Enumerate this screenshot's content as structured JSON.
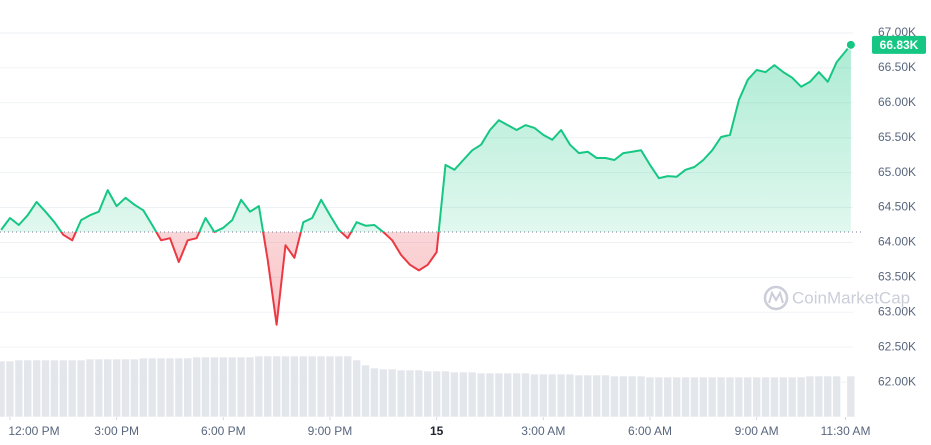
{
  "chart_data": {
    "type": "line",
    "watermark": "CoinMarketCap",
    "x": [
      -0.25,
      0,
      0.25,
      0.5,
      0.75,
      1,
      1.25,
      1.5,
      1.75,
      2,
      2.25,
      2.5,
      2.75,
      3,
      3.25,
      3.5,
      3.75,
      4,
      4.25,
      4.5,
      4.75,
      5,
      5.25,
      5.5,
      5.75,
      6,
      6.25,
      6.5,
      6.75,
      7,
      7.25,
      7.5,
      7.75,
      8,
      8.25,
      8.5,
      8.75,
      9,
      9.25,
      9.5,
      9.75,
      10,
      10.25,
      10.5,
      10.75,
      11,
      11.25,
      11.5,
      11.75,
      12,
      12.25,
      12.5,
      12.75,
      13,
      13.25,
      13.5,
      13.75,
      14,
      14.25,
      14.5,
      14.75,
      15,
      15.25,
      15.5,
      15.75,
      16,
      16.25,
      16.5,
      16.75,
      17,
      17.25,
      17.5,
      17.75,
      18,
      18.25,
      18.5,
      18.75,
      19,
      19.25,
      19.5,
      19.75,
      20,
      20.25,
      20.5,
      20.75,
      21,
      21.25,
      21.5,
      21.75,
      22,
      22.25,
      22.5,
      22.75,
      23,
      23.25,
      23.65
    ],
    "values": [
      64180,
      64350,
      64250,
      64390,
      64580,
      64440,
      64290,
      64110,
      64030,
      64320,
      64390,
      64440,
      64750,
      64520,
      64640,
      64540,
      64460,
      64250,
      64030,
      64060,
      63720,
      64030,
      64060,
      64350,
      64150,
      64210,
      64320,
      64610,
      64440,
      64520,
      63750,
      62820,
      63960,
      63780,
      64290,
      64350,
      64610,
      64390,
      64180,
      64060,
      64290,
      64240,
      64250,
      64150,
      64030,
      63820,
      63680,
      63600,
      63680,
      63860,
      65110,
      65040,
      65180,
      65320,
      65400,
      65610,
      65750,
      65680,
      65610,
      65680,
      65640,
      65540,
      65470,
      65610,
      65400,
      65280,
      65300,
      65210,
      65210,
      65180,
      65280,
      65300,
      65320,
      65110,
      64920,
      64950,
      64940,
      65040,
      65080,
      65180,
      65320,
      65510,
      65540,
      66040,
      66330,
      66470,
      66440,
      66540,
      66440,
      66360,
      66230,
      66300,
      66440,
      66300,
      66580,
      66830
    ],
    "volume": [
      56,
      56,
      57,
      57,
      57,
      57,
      57,
      57,
      57,
      57,
      58,
      58,
      58,
      58,
      58,
      58,
      59,
      59,
      59,
      59,
      59,
      59,
      60,
      60,
      60,
      60,
      60,
      60,
      60,
      61,
      61,
      61,
      61,
      61,
      61,
      61,
      61,
      61,
      61,
      61,
      57,
      52,
      49,
      48,
      48,
      47,
      47,
      47,
      46,
      46,
      46,
      45,
      45,
      45,
      44,
      44,
      44,
      44,
      44,
      44,
      43,
      43,
      43,
      43,
      43,
      42,
      42,
      42,
      42,
      41,
      41,
      41,
      41,
      40,
      40,
      40,
      40,
      40,
      40,
      40,
      40,
      40,
      40,
      40,
      40,
      40,
      40,
      40,
      40,
      40,
      40,
      41,
      41,
      41,
      41,
      41
    ],
    "baseline": 64150,
    "last_label": {
      "value": 66830,
      "label": "66.83K"
    },
    "color_up": "#16c784",
    "color_down": "#ea3943",
    "volume_color": "#e3e6eb",
    "grid": true,
    "xlim": [
      -0.28,
      23.71
    ],
    "ylim": [
      61500,
      67200
    ],
    "xticks": [
      {
        "value": 0,
        "label": "12:00 PM"
      },
      {
        "value": 3,
        "label": "3:00 PM"
      },
      {
        "value": 6,
        "label": "6:00 PM"
      },
      {
        "value": 9,
        "label": "9:00 PM"
      },
      {
        "value": 12,
        "label": "15"
      },
      {
        "value": 15,
        "label": "3:00 AM"
      },
      {
        "value": 18,
        "label": "6:00 AM"
      },
      {
        "value": 21,
        "label": "9:00 AM"
      },
      {
        "value": 23.5,
        "label": "11:30 AM"
      }
    ],
    "yticks": [
      {
        "value": 62000,
        "label": "62.00K"
      },
      {
        "value": 62500,
        "label": "62.50K"
      },
      {
        "value": 63000,
        "label": "63.00K"
      },
      {
        "value": 63500,
        "label": "63.50K"
      },
      {
        "value": 64000,
        "label": "64.00K"
      },
      {
        "value": 64500,
        "label": "64.50K"
      },
      {
        "value": 65000,
        "label": "65.00K"
      },
      {
        "value": 65500,
        "label": "65.50K"
      },
      {
        "value": 66000,
        "label": "66.00K"
      },
      {
        "value": 66500,
        "label": "66.50K"
      },
      {
        "value": 67000,
        "label": "67.00K"
      }
    ]
  }
}
